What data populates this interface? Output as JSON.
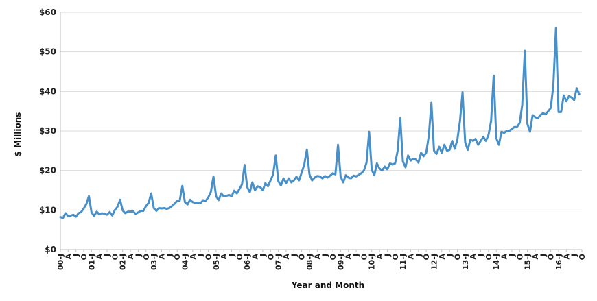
{
  "chart_data": {
    "type": "line",
    "title": "",
    "xlabel": "Year and Month",
    "ylabel": "$ Millions",
    "ylim": [
      0,
      60
    ],
    "yticks": [
      0,
      10,
      20,
      30,
      40,
      50,
      60
    ],
    "ytick_labels": [
      "$0",
      "$10",
      "$20",
      "$30",
      "$40",
      "$50",
      "$60"
    ],
    "grid": "horizontal",
    "legend": "none",
    "line_color": "#4a90c8",
    "x_tick_labels": [
      "00-J",
      "A",
      "J",
      "O",
      "01-J",
      "A",
      "J",
      "O",
      "02-J",
      "A",
      "J",
      "O",
      "03-J",
      "A",
      "J",
      "O",
      "04-J",
      "A",
      "J",
      "O",
      "05-J",
      "A",
      "J",
      "O",
      "06-J",
      "A",
      "J",
      "O",
      "07-J",
      "A",
      "J",
      "O",
      "08-J",
      "A",
      "J",
      "O",
      "09-J",
      "A",
      "J",
      "O",
      "10-J",
      "A",
      "J",
      "O",
      "11-J",
      "A",
      "J",
      "O",
      "12-J",
      "A",
      "J",
      "O",
      "13-J",
      "A",
      "J",
      "O",
      "14-J",
      "A",
      "J",
      "O",
      "15-J",
      "A",
      "J",
      "O",
      "16-J",
      "A",
      "J",
      "O"
    ],
    "series": [
      {
        "values": [
          8.2,
          8.0,
          9.2,
          8.4,
          8.6,
          8.8,
          8.3,
          9.2,
          9.5,
          10.4,
          11.5,
          13.5,
          9.4,
          8.5,
          9.6,
          8.9,
          9.2,
          9.0,
          8.8,
          9.5,
          8.6,
          10.0,
          10.8,
          12.6,
          9.9,
          9.2,
          9.6,
          9.6,
          9.7,
          9.0,
          9.4,
          9.8,
          9.8,
          11.0,
          11.8,
          14.2,
          10.5,
          9.8,
          10.5,
          10.4,
          10.5,
          10.3,
          10.5,
          11.0,
          11.6,
          12.3,
          12.4,
          16.1,
          12.0,
          11.4,
          12.6,
          12.0,
          11.8,
          11.9,
          11.7,
          12.5,
          12.3,
          13.2,
          14.6,
          18.5,
          13.5,
          12.5,
          14.2,
          13.4,
          13.6,
          13.8,
          13.5,
          14.9,
          14.2,
          15.3,
          16.5,
          21.4,
          15.8,
          14.5,
          17.0,
          15.0,
          16.0,
          15.8,
          15.0,
          16.8,
          16.0,
          17.5,
          19.0,
          23.8,
          17.3,
          16.2,
          18.0,
          16.8,
          18.0,
          17.0,
          17.5,
          18.4,
          17.5,
          19.5,
          21.5,
          25.3,
          19.0,
          17.5,
          18.2,
          18.6,
          18.5,
          18.0,
          18.6,
          18.2,
          18.7,
          19.3,
          19.0,
          26.5,
          18.5,
          17.0,
          18.8,
          18.2,
          18.0,
          18.7,
          18.5,
          18.9,
          19.3,
          20.0,
          22.0,
          29.8,
          20.2,
          18.8,
          21.8,
          20.5,
          20.0,
          21.0,
          20.3,
          21.8,
          21.5,
          21.8,
          25.0,
          33.2,
          22.3,
          20.8,
          23.8,
          22.5,
          23.0,
          22.8,
          22.0,
          24.5,
          23.6,
          24.5,
          28.8,
          37.1,
          25.0,
          24.2,
          26.0,
          24.5,
          26.5,
          25.0,
          25.2,
          27.5,
          25.5,
          27.8,
          32.5,
          39.8,
          27.2,
          25.2,
          27.8,
          27.5,
          28.0,
          26.5,
          27.5,
          28.5,
          27.5,
          29.0,
          32.5,
          44.0,
          28.2,
          26.5,
          29.8,
          29.5,
          30.0,
          30.0,
          30.5,
          31.0,
          31.0,
          32.0,
          36.5,
          50.3,
          31.8,
          29.8,
          34.0,
          33.5,
          33.2,
          34.0,
          34.5,
          34.2,
          35.0,
          35.8,
          41.5,
          56.0,
          34.8,
          34.8,
          39.0,
          37.5,
          38.8,
          38.5,
          37.8,
          40.8,
          39.3
        ]
      }
    ]
  }
}
